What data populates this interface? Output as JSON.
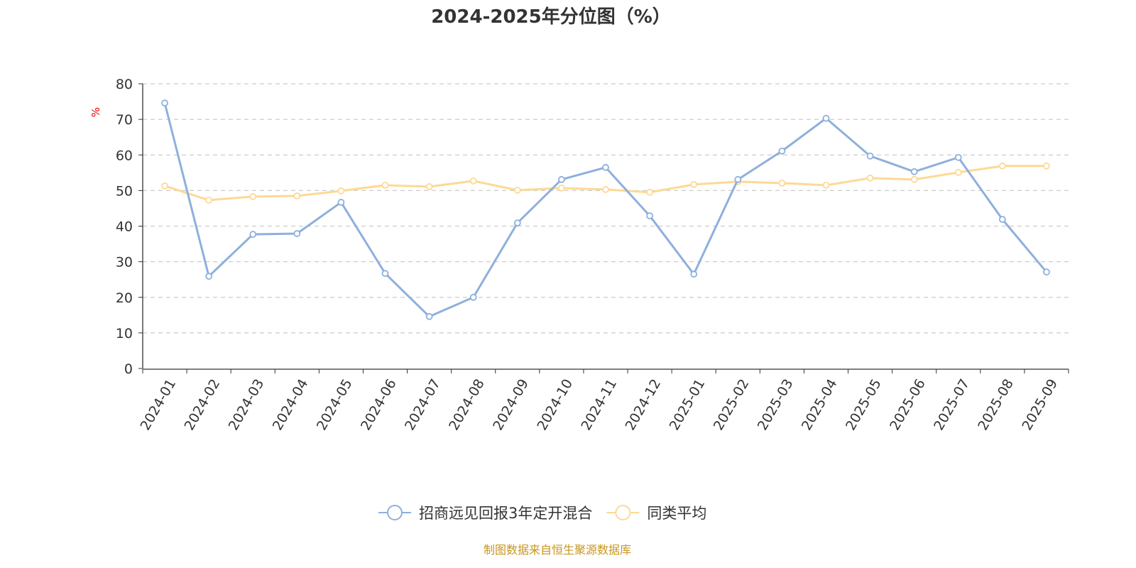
{
  "chart_data": {
    "type": "line",
    "title": "2024-2025年分位图（%）",
    "ylabel": "%",
    "ylim": [
      0,
      80
    ],
    "yticks": [
      0,
      10,
      20,
      30,
      40,
      50,
      60,
      70,
      80
    ],
    "grid": true,
    "legend_position": "bottom",
    "categories": [
      "2024-01",
      "2024-02",
      "2024-03",
      "2024-04",
      "2024-05",
      "2024-06",
      "2024-07",
      "2024-08",
      "2024-09",
      "2024-10",
      "2024-11",
      "2024-12",
      "2025-01",
      "2025-02",
      "2025-03",
      "2025-04",
      "2025-05",
      "2025-06",
      "2025-07",
      "2025-08",
      "2025-09"
    ],
    "series": [
      {
        "name": "招商远见回报3年定开混合",
        "color": "#8eb0dc",
        "values": [
          74.6,
          25.9,
          37.7,
          37.9,
          46.7,
          26.7,
          14.6,
          20.0,
          40.9,
          53.1,
          56.5,
          42.9,
          26.5,
          53.1,
          61.1,
          70.3,
          59.7,
          55.3,
          59.3,
          41.9,
          27.1
        ]
      },
      {
        "name": "同类平均",
        "color": "#fdd995",
        "values": [
          51.3,
          47.3,
          48.3,
          48.5,
          49.9,
          51.5,
          51.1,
          52.7,
          50.1,
          50.7,
          50.3,
          49.5,
          51.7,
          52.5,
          52.1,
          51.5,
          53.5,
          53.1,
          55.1,
          56.9,
          56.9
        ]
      }
    ]
  },
  "source": "制图数据来自恒生聚源数据库"
}
